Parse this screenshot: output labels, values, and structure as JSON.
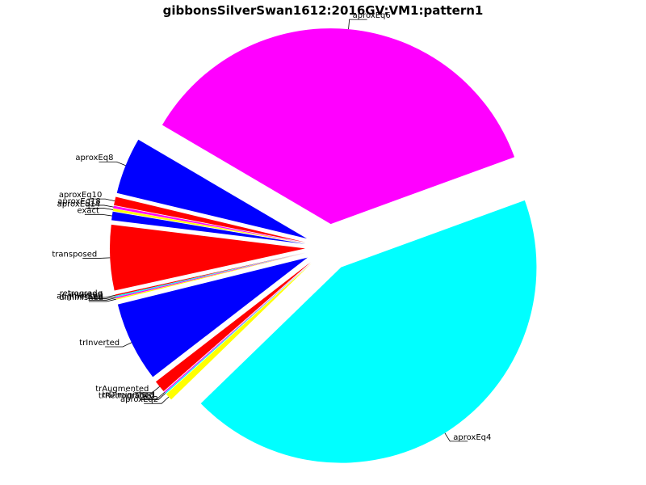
{
  "chart_data": {
    "type": "pie",
    "title": "gibbonsSilverSwan1612:2016GV:VM1:pattern1",
    "slices": [
      {
        "label": "aproxEq6",
        "value": 36.0,
        "color": "#ff00ff"
      },
      {
        "label": "aproxEq8",
        "value": 4.7,
        "color": "#0000ff"
      },
      {
        "label": "aproxEq10",
        "value": 0.7,
        "color": "#ff0000"
      },
      {
        "label": "aproxEq18",
        "value": 0.2,
        "color": "#ff00ff"
      },
      {
        "label": "aproxEq14",
        "value": 0.2,
        "color": "#ffff00"
      },
      {
        "label": "exact",
        "value": 0.7,
        "color": "#0000ff"
      },
      {
        "label": "transposed",
        "value": 5.4,
        "color": "#ff0000"
      },
      {
        "label": "retrograde",
        "value": 0.1,
        "color": "#ff0000"
      },
      {
        "label": "inverted",
        "value": 0.1,
        "color": "#00ffff"
      },
      {
        "label": "augmented",
        "value": 0.1,
        "color": "#ff00ff"
      },
      {
        "label": "diminished",
        "value": 0.1,
        "color": "#ffff00"
      },
      {
        "label": "trInverted",
        "value": 6.6,
        "color": "#0000ff"
      },
      {
        "label": "trAugmented",
        "value": 1.0,
        "color": "#ff0000"
      },
      {
        "label": "trDiminished",
        "value": 0.1,
        "color": "#ff00ff"
      },
      {
        "label": "trRetrograded",
        "value": 0.1,
        "color": "#00ffff"
      },
      {
        "label": "aproxEq2",
        "value": 0.6,
        "color": "#ffff00"
      },
      {
        "label": "aproxEq4",
        "value": 43.3,
        "color": "#00ffff"
      }
    ]
  }
}
